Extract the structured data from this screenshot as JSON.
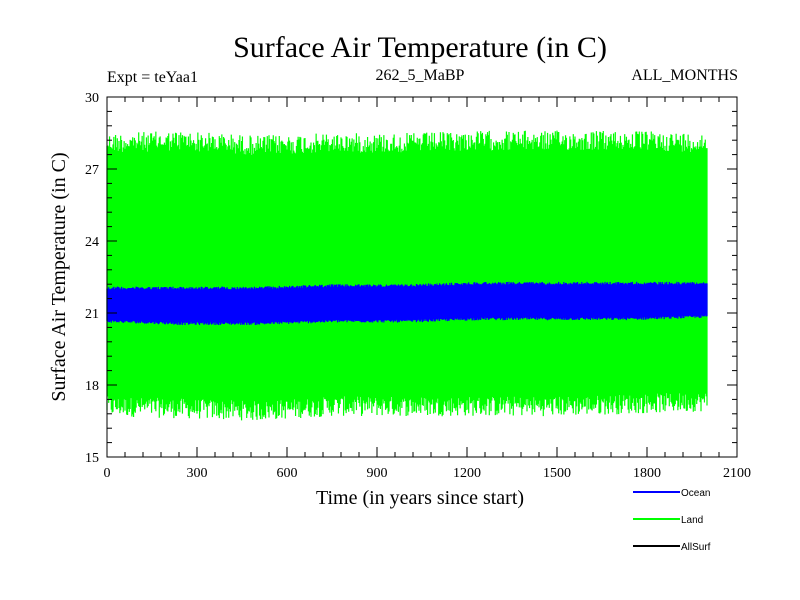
{
  "chart_data": {
    "type": "line",
    "title": "Surface Air Temperature (in C)",
    "experiment_label": "Expt = teYaa1",
    "period_label": "262_5_MaBP",
    "months_label": "ALL_MONTHS",
    "xlabel": "Time (in years since start)",
    "ylabel": "Surface Air Temperature (in C)",
    "xlim": [
      0,
      2100
    ],
    "ylim": [
      15,
      30
    ],
    "x_ticks": [
      0,
      300,
      600,
      900,
      1200,
      1500,
      1800,
      2100
    ],
    "y_ticks": [
      15,
      18,
      21,
      24,
      27,
      30
    ],
    "x_tick_labels": [
      "0",
      "300",
      "600",
      "900",
      "1200",
      "1500",
      "1800",
      "2100"
    ],
    "y_tick_labels": [
      "15",
      "18",
      "21",
      "24",
      "27",
      "30"
    ],
    "x_data_range": [
      0,
      2000
    ],
    "series": [
      {
        "name": "Land",
        "color": "#00ff00",
        "envelope_x": [
          0,
          250,
          500,
          750,
          1000,
          1250,
          1500,
          1750,
          2000
        ],
        "envelope_min": [
          16.7,
          16.6,
          16.5,
          16.7,
          16.7,
          16.7,
          16.7,
          16.8,
          16.9
        ],
        "envelope_max": [
          28.5,
          28.6,
          28.4,
          28.5,
          28.5,
          28.6,
          28.6,
          28.6,
          28.5
        ]
      },
      {
        "name": "Ocean",
        "color": "#0000ff",
        "envelope_x": [
          0,
          250,
          500,
          750,
          1000,
          1250,
          1500,
          1750,
          2000
        ],
        "envelope_min": [
          20.6,
          20.5,
          20.5,
          20.6,
          20.6,
          20.7,
          20.7,
          20.7,
          20.8
        ],
        "envelope_max": [
          22.1,
          22.1,
          22.1,
          22.2,
          22.2,
          22.3,
          22.3,
          22.3,
          22.3
        ]
      },
      {
        "name": "AllSurf",
        "color": "#000000",
        "envelope_x": [],
        "envelope_min": [],
        "envelope_max": []
      }
    ],
    "legend": [
      {
        "label": "Ocean",
        "color": "#0000ff"
      },
      {
        "label": "Land",
        "color": "#00ff00"
      },
      {
        "label": "AllSurf",
        "color": "#000000"
      }
    ],
    "legend_position": "bottom-right"
  }
}
